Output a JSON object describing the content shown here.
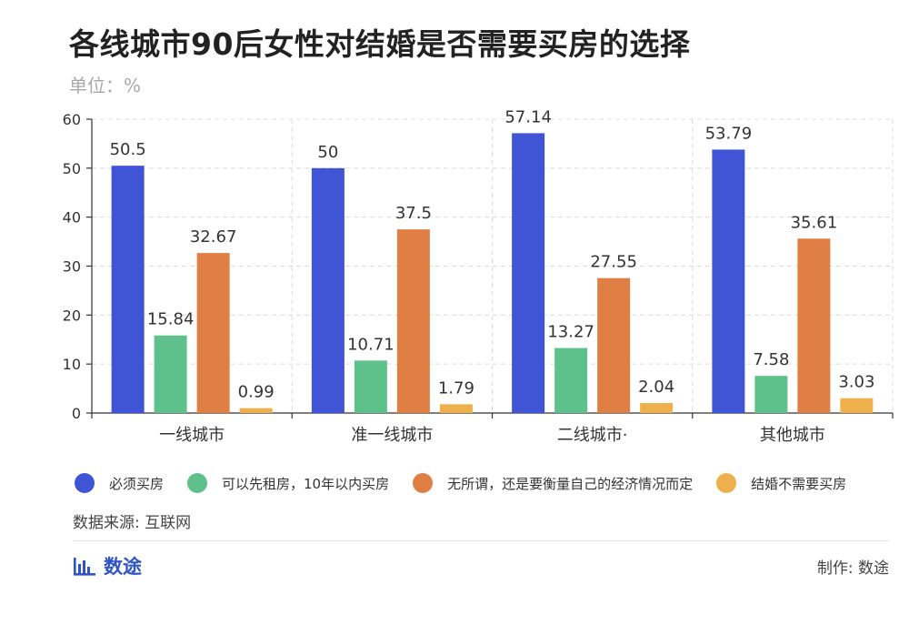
{
  "title": "各线城市90后女性对结婚是否需要买房的选择",
  "unit": "单位：%",
  "chart_data": {
    "type": "bar",
    "categories": [
      "一线城市",
      "准一线城市",
      "二线城市·",
      "其他城市"
    ],
    "series": [
      {
        "name": "必须买房",
        "color": "#4054d6",
        "values": [
          50.5,
          50,
          57.14,
          53.79
        ]
      },
      {
        "name": "可以先租房，10年以内买房",
        "color": "#5ec08a",
        "values": [
          15.84,
          10.71,
          13.27,
          7.58
        ]
      },
      {
        "name": "无所谓，还是要衡量自己的经济情况而定",
        "color": "#e07f43",
        "values": [
          32.67,
          37.5,
          27.55,
          35.61
        ]
      },
      {
        "name": "结婚不需要买房",
        "color": "#eeb04c",
        "values": [
          0.99,
          1.79,
          2.04,
          3.03
        ]
      }
    ],
    "ylim": [
      0,
      60
    ],
    "yticks": [
      0,
      10,
      20,
      30,
      40,
      50,
      60
    ],
    "grid": true,
    "legend_position": "bottom"
  },
  "source": "数据来源: 互联网",
  "brand": "数途",
  "maker": "制作: 数途",
  "colors": {
    "brand": "#2f54c6"
  }
}
